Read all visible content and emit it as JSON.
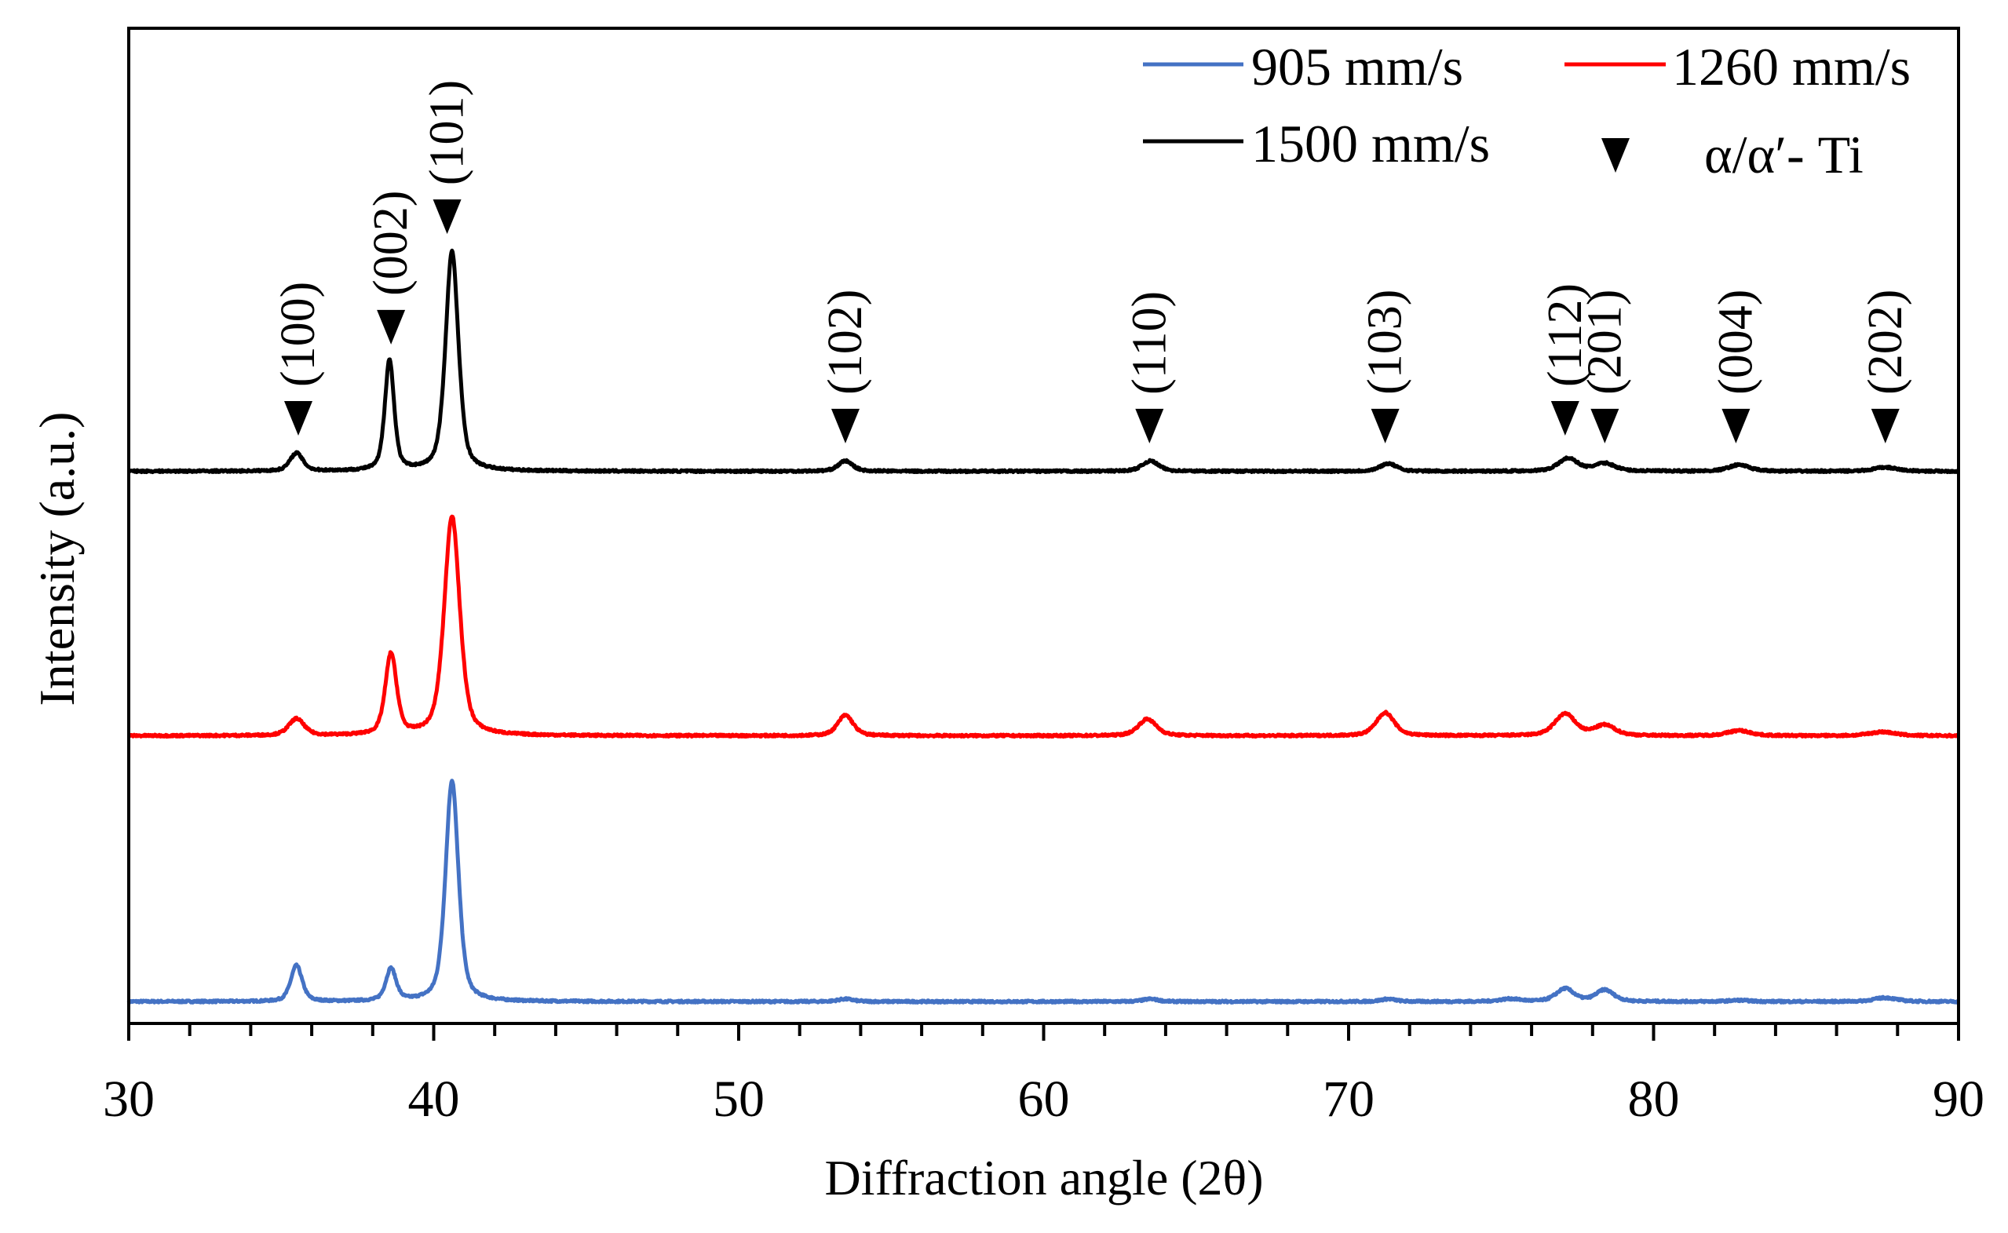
{
  "chart_data": {
    "type": "line",
    "title": "",
    "xlabel": "Diffraction angle (2θ)",
    "ylabel": "Intensity (a.u.)",
    "xlim": [
      30,
      90
    ],
    "ylim": [
      -17,
      758
    ],
    "xticks": [
      30,
      40,
      50,
      60,
      70,
      80,
      90
    ],
    "xtick_labels": [
      "30",
      "40",
      "50",
      "60",
      "70",
      "80",
      "90"
    ],
    "minor_xtick_step": 2,
    "grid": false,
    "legend_position": "top-right",
    "series": [
      {
        "name": "905 mm/s",
        "color": "#4472C4",
        "offset": 0,
        "peaks": [
          [
            35.5,
            28,
            0.22
          ],
          [
            38.6,
            25,
            0.2
          ],
          [
            40.6,
            172,
            0.25
          ],
          [
            53.5,
            2,
            0.3
          ],
          [
            63.5,
            2,
            0.3
          ],
          [
            71.3,
            2,
            0.3
          ],
          [
            75.3,
            2,
            0.4
          ],
          [
            77.1,
            10,
            0.35
          ],
          [
            78.4,
            9,
            0.35
          ],
          [
            82.8,
            1,
            0.4
          ],
          [
            87.6,
            3,
            0.45
          ]
        ]
      },
      {
        "name": "1260 mm/s",
        "color": "#FF0000",
        "offset": 207,
        "peaks": [
          [
            35.5,
            13,
            0.3
          ],
          [
            38.6,
            63,
            0.22
          ],
          [
            40.6,
            171,
            0.3
          ],
          [
            53.5,
            16,
            0.3
          ],
          [
            63.4,
            13,
            0.35
          ],
          [
            71.2,
            18,
            0.35
          ],
          [
            77.1,
            17,
            0.4
          ],
          [
            78.4,
            8,
            0.4
          ],
          [
            82.8,
            4,
            0.45
          ],
          [
            87.5,
            3,
            0.5
          ]
        ]
      },
      {
        "name": "1500 mm/s",
        "color": "#000000",
        "offset": 413,
        "peaks": [
          [
            35.5,
            14,
            0.25
          ],
          [
            38.55,
            86,
            0.18
          ],
          [
            40.6,
            171,
            0.25
          ],
          [
            53.5,
            8,
            0.28
          ],
          [
            63.5,
            8,
            0.32
          ],
          [
            71.3,
            6,
            0.32
          ],
          [
            77.2,
            10,
            0.38
          ],
          [
            78.4,
            6,
            0.4
          ],
          [
            82.8,
            5,
            0.4
          ],
          [
            87.6,
            3,
            0.45
          ]
        ]
      }
    ],
    "annotations": [
      {
        "label": "(100)",
        "x": 35.56,
        "y": 453
      },
      {
        "label": "(002)",
        "x": 38.6,
        "y": 524
      },
      {
        "label": "(101)",
        "x": 40.44,
        "y": 610
      },
      {
        "label": "(102)",
        "x": 53.5,
        "y": 447
      },
      {
        "label": "(110)",
        "x": 63.47,
        "y": 447
      },
      {
        "label": "(103)",
        "x": 71.2,
        "y": 447
      },
      {
        "label": "(112)",
        "x": 77.1,
        "y": 453
      },
      {
        "label": "(201)",
        "x": 78.4,
        "y": 447
      },
      {
        "label": "(004)",
        "x": 82.7,
        "y": 447
      },
      {
        "label": "(202)",
        "x": 87.6,
        "y": 447
      }
    ],
    "legend": {
      "entries": [
        "905 mm/s",
        "1260 mm/s",
        "1500 mm/s"
      ],
      "marker_entry": "α/α′- Ti"
    }
  }
}
